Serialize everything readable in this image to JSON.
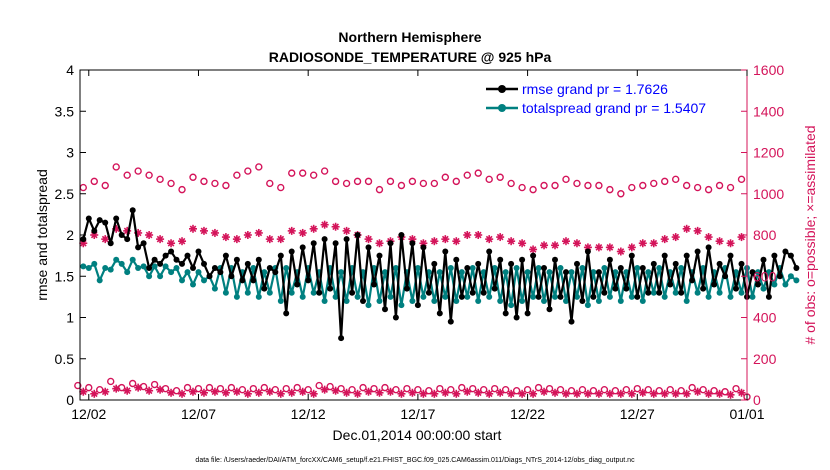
{
  "chart_data": {
    "type": "line",
    "title_line1": "Northern Hemisphere",
    "title_line2": "RADIOSONDE_TEMPERATURE @ 925 hPa",
    "xlabel": "Dec.01,2014 00:00:00 start",
    "ylabel_left": "rmse and totalspread",
    "ylabel_right": "# of obs: o=possible; ×=assimilated",
    "footnote": "data file: /Users/raeder/DAI/ATM_forcXX/CAM6_setup/f.e21.FHIST_BGC.f09_025.CAM6assim.011/Diags_NTrS_2014-12/obs_diag_output.nc",
    "x_range_days": [
      0.6,
      31.0
    ],
    "x_ticks": [
      {
        "day": 1,
        "label": "12/02"
      },
      {
        "day": 6,
        "label": "12/07"
      },
      {
        "day": 11,
        "label": "12/12"
      },
      {
        "day": 16,
        "label": "12/17"
      },
      {
        "day": 21,
        "label": "12/22"
      },
      {
        "day": 26,
        "label": "12/27"
      },
      {
        "day": 31,
        "label": "01/01"
      }
    ],
    "y_left_range": [
      0,
      4
    ],
    "y_left_ticks": [
      "0",
      "0.5",
      "1",
      "1.5",
      "2",
      "2.5",
      "3",
      "3.5",
      "4"
    ],
    "y_right_range": [
      0,
      1600
    ],
    "y_right_ticks": [
      "0",
      "200",
      "400",
      "600",
      "800",
      "1000",
      "1200",
      "1400",
      "1600"
    ],
    "legend": [
      {
        "label": "rmse grand pr = 1.7626",
        "color": "#000000"
      },
      {
        "label": "totalspread grand pr = 1.5407",
        "color": "#008080"
      }
    ],
    "colors": {
      "rmse": "#000000",
      "spread": "#008080",
      "obs": "#d4145a",
      "right_axis": "#d4145a",
      "legend_text": "#0000ff"
    },
    "time_step_days": 0.25,
    "time_start_day": 0.75,
    "series": [
      {
        "name": "rmse",
        "axis": "left",
        "values": [
          1.95,
          2.2,
          2.05,
          2.18,
          2.15,
          1.9,
          2.2,
          2.0,
          1.95,
          2.3,
          1.85,
          1.9,
          1.6,
          1.7,
          1.65,
          1.75,
          1.8,
          1.7,
          1.65,
          1.75,
          1.6,
          1.8,
          1.65,
          1.5,
          1.6,
          1.55,
          1.75,
          1.5,
          1.7,
          1.45,
          1.65,
          1.45,
          1.7,
          1.35,
          1.6,
          1.55,
          1.75,
          1.05,
          1.8,
          1.4,
          1.85,
          1.45,
          1.9,
          1.3,
          1.95,
          1.35,
          1.9,
          0.75,
          1.95,
          1.3,
          2.0,
          1.2,
          1.85,
          1.4,
          1.75,
          1.1,
          1.9,
          1.0,
          2.0,
          1.35,
          1.9,
          1.15,
          1.85,
          1.3,
          1.65,
          1.05,
          1.8,
          0.95,
          1.7,
          1.25,
          1.6,
          1.3,
          1.65,
          1.3,
          1.8,
          1.35,
          1.7,
          1.05,
          1.65,
          1.0,
          1.7,
          1.05,
          1.75,
          1.25,
          1.6,
          1.1,
          1.7,
          1.25,
          1.55,
          0.95,
          1.65,
          1.2,
          1.8,
          1.25,
          1.55,
          1.3,
          1.7,
          1.35,
          1.6,
          1.35,
          1.75,
          1.25,
          1.6,
          1.3,
          1.65,
          1.3,
          1.75,
          1.4,
          1.65,
          1.3,
          1.75,
          1.45,
          1.8,
          1.35,
          1.85,
          1.4,
          1.65,
          1.5,
          1.75,
          1.35,
          1.65,
          1.25,
          1.55,
          1.4,
          1.7,
          1.25,
          1.75,
          1.5,
          1.8,
          1.75,
          1.6
        ]
      },
      {
        "name": "totalspread",
        "axis": "left",
        "values": [
          1.62,
          1.6,
          1.65,
          1.45,
          1.6,
          1.58,
          1.7,
          1.65,
          1.55,
          1.7,
          1.6,
          1.62,
          1.5,
          1.62,
          1.5,
          1.62,
          1.55,
          1.6,
          1.45,
          1.55,
          1.4,
          1.55,
          1.45,
          1.5,
          1.35,
          1.6,
          1.3,
          1.6,
          1.25,
          1.55,
          1.3,
          1.6,
          1.25,
          1.55,
          1.3,
          1.6,
          1.2,
          1.6,
          1.3,
          1.55,
          1.25,
          1.6,
          1.3,
          1.55,
          1.2,
          1.6,
          1.25,
          1.55,
          1.2,
          1.6,
          1.25,
          1.55,
          1.15,
          1.6,
          1.2,
          1.55,
          1.25,
          1.6,
          1.15,
          1.55,
          1.2,
          1.6,
          1.25,
          1.55,
          1.2,
          1.55,
          1.25,
          1.6,
          1.2,
          1.55,
          1.25,
          1.6,
          1.2,
          1.55,
          1.25,
          1.6,
          1.2,
          1.55,
          1.15,
          1.6,
          1.2,
          1.55,
          1.25,
          1.6,
          1.2,
          1.55,
          1.25,
          1.6,
          1.2,
          1.55,
          1.25,
          1.6,
          1.15,
          1.55,
          1.2,
          1.6,
          1.25,
          1.55,
          1.2,
          1.55,
          1.25,
          1.6,
          1.2,
          1.55,
          1.3,
          1.6,
          1.25,
          1.55,
          1.3,
          1.6,
          1.2,
          1.55,
          1.3,
          1.6,
          1.25,
          1.55,
          1.3,
          1.6,
          1.25,
          1.55,
          1.3,
          1.6,
          1.25,
          1.55,
          1.35,
          1.55,
          1.4,
          1.6,
          1.4,
          1.5,
          1.45
        ]
      }
    ],
    "obs_series": [
      {
        "name": "possible (mean levels)",
        "axis": "right",
        "marker": "circle",
        "x": [
          0.75,
          1.25,
          1.75,
          2.25,
          2.75,
          3.25,
          3.75,
          4.25,
          4.75,
          5.25,
          5.75,
          6.25,
          6.75,
          7.25,
          7.75,
          8.25,
          8.75,
          9.25,
          9.75,
          10.25,
          10.75,
          11.25,
          11.75,
          12.25,
          12.75,
          13.25,
          13.75,
          14.25,
          14.75,
          15.25,
          15.75,
          16.25,
          16.75,
          17.25,
          17.75,
          18.25,
          18.75,
          19.25,
          19.75,
          20.25,
          20.75,
          21.25,
          21.75,
          22.25,
          22.75,
          23.25,
          23.75,
          24.25,
          24.75,
          25.25,
          25.75,
          26.25,
          26.75,
          27.25,
          27.75,
          28.25,
          28.75,
          29.25,
          29.75,
          30.25,
          30.75
        ],
        "values": [
          1030,
          1060,
          1040,
          1130,
          1090,
          1110,
          1090,
          1070,
          1050,
          1020,
          1080,
          1060,
          1050,
          1040,
          1090,
          1110,
          1130,
          1050,
          1030,
          1100,
          1100,
          1090,
          1110,
          1060,
          1050,
          1060,
          1060,
          1020,
          1060,
          1040,
          1060,
          1050,
          1050,
          1080,
          1060,
          1090,
          1100,
          1070,
          1080,
          1050,
          1030,
          1020,
          1040,
          1040,
          1070,
          1050,
          1040,
          1040,
          1020,
          1000,
          1030,
          1040,
          1050,
          1060,
          1070,
          1040,
          1030,
          1020,
          1040,
          1030,
          1070
        ]
      },
      {
        "name": "assimilated (mean levels)",
        "axis": "right",
        "marker": "asterisk",
        "x": [
          0.75,
          1.25,
          1.75,
          2.25,
          2.75,
          3.25,
          3.75,
          4.25,
          4.75,
          5.25,
          5.75,
          6.25,
          6.75,
          7.25,
          7.75,
          8.25,
          8.75,
          9.25,
          9.75,
          10.25,
          10.75,
          11.25,
          11.75,
          12.25,
          12.75,
          13.25,
          13.75,
          14.25,
          14.75,
          15.25,
          15.75,
          16.25,
          16.75,
          17.25,
          17.75,
          18.25,
          18.75,
          19.25,
          19.75,
          20.25,
          20.75,
          21.25,
          21.75,
          22.25,
          22.75,
          23.25,
          23.75,
          24.25,
          24.75,
          25.25,
          25.75,
          26.25,
          26.75,
          27.25,
          27.75,
          28.25,
          28.75,
          29.25,
          29.75,
          30.25,
          30.75
        ],
        "values": [
          760,
          800,
          780,
          830,
          820,
          810,
          800,
          780,
          760,
          770,
          830,
          820,
          810,
          790,
          780,
          800,
          810,
          780,
          780,
          820,
          810,
          830,
          850,
          840,
          820,
          800,
          780,
          760,
          770,
          790,
          780,
          760,
          770,
          780,
          770,
          800,
          800,
          780,
          790,
          770,
          760,
          730,
          750,
          750,
          770,
          760,
          740,
          740,
          740,
          720,
          740,
          760,
          760,
          780,
          790,
          830,
          820,
          790,
          770,
          760,
          790
        ]
      },
      {
        "name": "possible (daily bottom)",
        "axis": "right",
        "marker": "circle",
        "x": [
          0.5,
          1.0,
          1.5,
          2.0,
          2.5,
          3.0,
          3.5,
          4.0,
          4.5,
          5.0,
          5.5,
          6.0,
          6.5,
          7.0,
          7.5,
          8.0,
          8.5,
          9.0,
          9.5,
          10.0,
          10.5,
          11.0,
          11.5,
          12.0,
          12.5,
          13.0,
          13.5,
          14.0,
          14.5,
          15.0,
          15.5,
          16.0,
          16.5,
          17.0,
          17.5,
          18.0,
          18.5,
          19.0,
          19.5,
          20.0,
          20.5,
          21.0,
          21.5,
          22.0,
          22.5,
          23.0,
          23.5,
          24.0,
          24.5,
          25.0,
          25.5,
          26.0,
          26.5,
          27.0,
          27.5,
          28.0,
          28.5,
          29.0,
          29.5,
          30.0,
          30.5,
          31.0
        ],
        "values": [
          70,
          60,
          50,
          90,
          60,
          80,
          65,
          75,
          55,
          45,
          60,
          55,
          60,
          55,
          60,
          50,
          55,
          60,
          50,
          55,
          60,
          50,
          70,
          65,
          55,
          50,
          60,
          55,
          60,
          50,
          55,
          50,
          45,
          55,
          50,
          60,
          55,
          50,
          55,
          50,
          45,
          50,
          60,
          55,
          50,
          45,
          50,
          45,
          50,
          45,
          50,
          55,
          50,
          45,
          50,
          45,
          60,
          50,
          45,
          40,
          55,
          15
        ]
      },
      {
        "name": "assimilated (daily bottom)",
        "axis": "right",
        "marker": "asterisk",
        "x": [
          0.75,
          1.25,
          1.75,
          2.25,
          2.75,
          3.25,
          3.75,
          4.25,
          4.75,
          5.25,
          5.75,
          6.25,
          6.75,
          7.25,
          7.75,
          8.25,
          8.75,
          9.25,
          9.75,
          10.25,
          10.75,
          11.25,
          11.75,
          12.25,
          12.75,
          13.25,
          13.75,
          14.25,
          14.75,
          15.25,
          15.75,
          16.25,
          16.75,
          17.25,
          17.75,
          18.25,
          18.75,
          19.25,
          19.75,
          20.25,
          20.75,
          21.25,
          21.75,
          22.25,
          22.75,
          23.25,
          23.75,
          24.25,
          24.75,
          25.25,
          25.75,
          26.25,
          26.75,
          27.25,
          27.75,
          28.25,
          28.75,
          29.25,
          29.75,
          30.25,
          30.75
        ],
        "values": [
          40,
          30,
          40,
          55,
          45,
          60,
          45,
          50,
          35,
          30,
          40,
          35,
          40,
          35,
          40,
          30,
          35,
          40,
          30,
          35,
          40,
          30,
          50,
          45,
          35,
          30,
          40,
          35,
          40,
          30,
          35,
          30,
          30,
          35,
          30,
          40,
          35,
          30,
          35,
          30,
          30,
          30,
          40,
          35,
          30,
          30,
          30,
          30,
          30,
          30,
          30,
          35,
          30,
          30,
          30,
          30,
          40,
          30,
          30,
          25,
          35
        ]
      }
    ]
  }
}
